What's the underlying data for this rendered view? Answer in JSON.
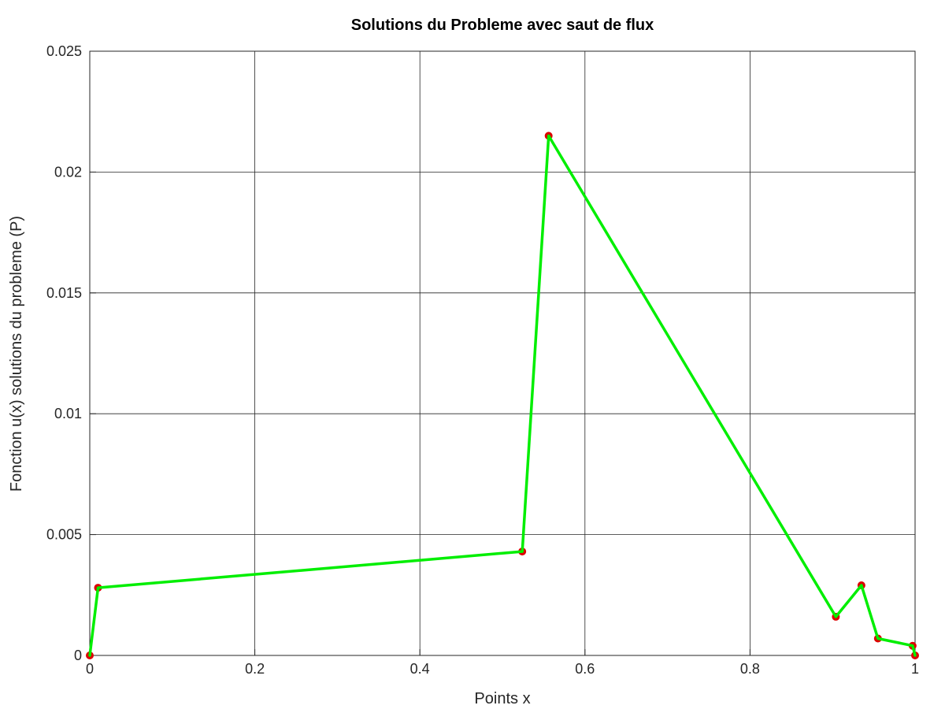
{
  "chart_data": {
    "type": "line",
    "title": "Solutions du Probleme avec saut de flux",
    "xlabel": "Points x",
    "ylabel": "Fonction u(x) solutions du probleme (P)",
    "xlim": [
      0,
      1
    ],
    "ylim": [
      0,
      0.025
    ],
    "xticks": [
      0,
      0.2,
      0.4,
      0.6,
      0.8,
      1
    ],
    "xtick_labels": [
      "0",
      "0.2",
      "0.4",
      "0.6",
      "0.8",
      "1"
    ],
    "yticks": [
      0,
      0.005,
      0.01,
      0.015,
      0.02,
      0.025
    ],
    "ytick_labels": [
      "0",
      "0.005",
      "0.01",
      "0.015",
      "0.02",
      "0.025"
    ],
    "grid": true,
    "series": [
      {
        "line_color": "#00ee00",
        "marker_color": "#dd0000",
        "marker": "circle",
        "x": [
          0,
          0.01,
          0.524,
          0.556,
          0.904,
          0.935,
          0.955,
          0.997,
          1.0
        ],
        "y": [
          0,
          0.0028,
          0.0043,
          0.0215,
          0.0016,
          0.0029,
          0.0007,
          0.0004,
          0
        ]
      }
    ]
  }
}
